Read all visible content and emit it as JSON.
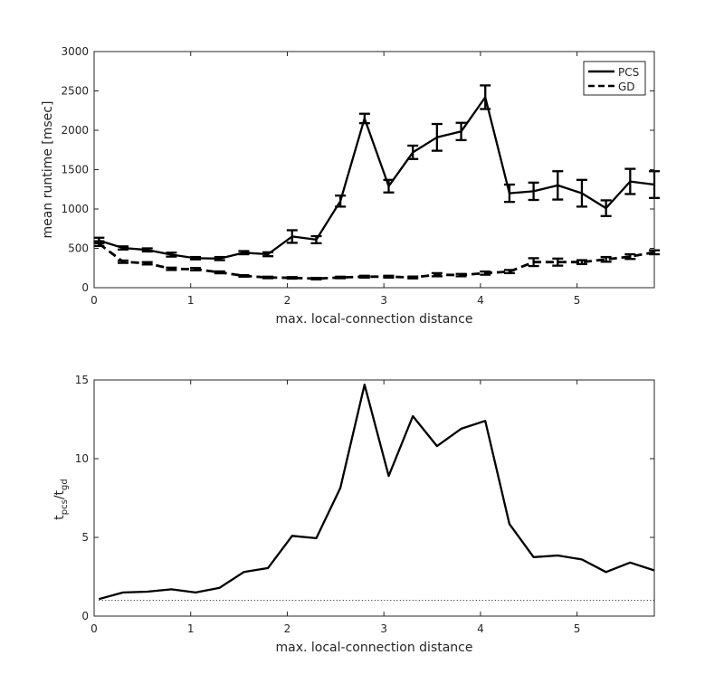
{
  "chart_data": [
    {
      "type": "line",
      "xlabel": "max. local-connection distance",
      "ylabel": "mean runtime [msec]",
      "xlim": [
        0,
        5.8
      ],
      "ylim": [
        0,
        3000
      ],
      "xticks": [
        "0",
        "1",
        "2",
        "3",
        "4",
        "5"
      ],
      "yticks": [
        "0",
        "500",
        "1000",
        "1500",
        "2000",
        "2500",
        "3000"
      ],
      "legend": {
        "position": "top-right"
      },
      "x": [
        0.05,
        0.3,
        0.55,
        0.8,
        1.05,
        1.3,
        1.55,
        1.8,
        2.05,
        2.3,
        2.55,
        2.8,
        3.05,
        3.3,
        3.55,
        3.8,
        4.05,
        4.3,
        4.55,
        4.8,
        5.05,
        5.3,
        5.55,
        5.8
      ],
      "series": [
        {
          "name": "PCS",
          "style": "solid",
          "values": [
            600,
            505,
            480,
            420,
            375,
            370,
            445,
            425,
            650,
            610,
            1100,
            2150,
            1290,
            1720,
            1910,
            1985,
            2420,
            1200,
            1225,
            1300,
            1200,
            1010,
            1350,
            1310
          ],
          "errors": [
            35,
            20,
            20,
            25,
            15,
            20,
            20,
            25,
            80,
            45,
            70,
            60,
            80,
            85,
            170,
            110,
            150,
            110,
            110,
            180,
            170,
            100,
            160,
            170
          ]
        },
        {
          "name": "GD",
          "style": "dashed",
          "values": [
            560,
            330,
            310,
            240,
            235,
            195,
            150,
            130,
            125,
            115,
            130,
            140,
            140,
            130,
            165,
            160,
            185,
            205,
            325,
            325,
            325,
            360,
            395,
            450
          ],
          "errors": [
            30,
            15,
            15,
            15,
            15,
            12,
            10,
            10,
            10,
            10,
            10,
            12,
            12,
            12,
            20,
            15,
            20,
            20,
            50,
            45,
            25,
            30,
            30,
            25
          ]
        }
      ]
    },
    {
      "type": "line",
      "xlabel": "max. local-connection distance",
      "ylabel": "t_pcs/t_gd",
      "ylabel_parts": {
        "t1": "t",
        "s1": "pcs",
        "slash": "/",
        "t2": "t",
        "s2": "gd"
      },
      "xlim": [
        0,
        5.8
      ],
      "ylim": [
        0,
        15
      ],
      "xticks": [
        "0",
        "1",
        "2",
        "3",
        "4",
        "5"
      ],
      "yticks": [
        "0",
        "5",
        "10",
        "15"
      ],
      "x": [
        0.05,
        0.3,
        0.55,
        0.8,
        1.05,
        1.3,
        1.55,
        1.8,
        2.05,
        2.3,
        2.55,
        2.8,
        3.05,
        3.3,
        3.55,
        3.8,
        4.05,
        4.3,
        4.55,
        4.8,
        5.05,
        5.3,
        5.55,
        5.8
      ],
      "series": [
        {
          "style": "solid",
          "values": [
            1.08,
            1.5,
            1.55,
            1.7,
            1.5,
            1.8,
            2.8,
            3.05,
            5.1,
            4.95,
            8.15,
            14.7,
            8.9,
            12.7,
            10.8,
            11.9,
            12.4,
            5.85,
            3.75,
            3.85,
            3.6,
            2.8,
            3.4,
            2.9
          ]
        },
        {
          "style": "dotted",
          "x": [
            0.05,
            5.8
          ],
          "values": [
            1,
            1
          ]
        }
      ]
    }
  ]
}
